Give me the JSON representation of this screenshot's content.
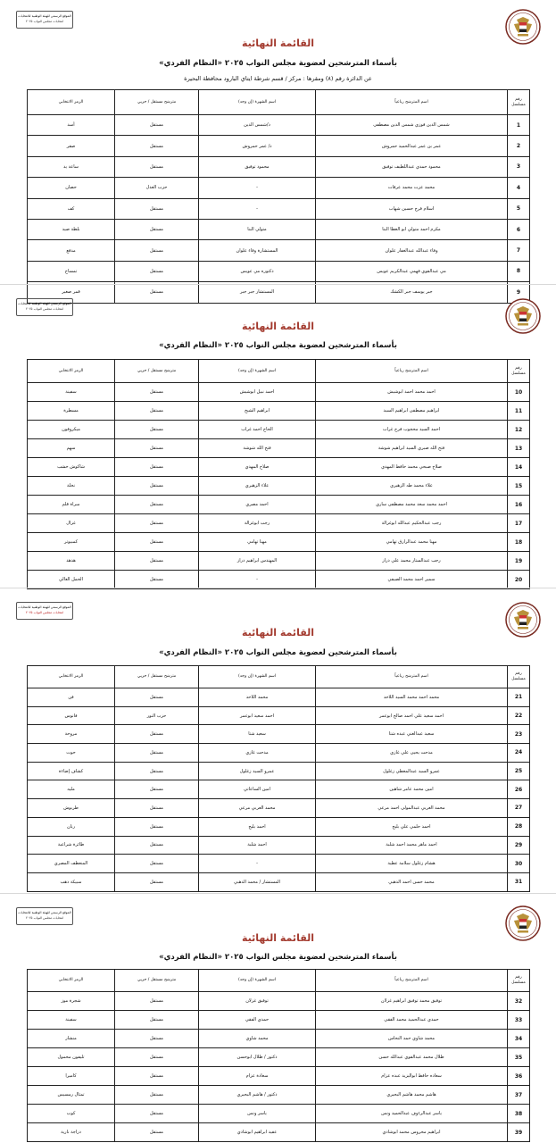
{
  "document": {
    "corner_box": {
      "line1": "الموقع الرسمي للهيئة الوطنية للانتخابات",
      "line2": "انتخابات مجلس النواب ٢٠٢٥"
    },
    "title": "القائمة النهائية",
    "subtitle": "بأسماء المترشحين لعضوية مجلس النواب ٢٠٢٥ «النظام الفردي»",
    "district": "عن الدائرة رقم (٨)   ومقرها : مركز / قسم شرطة ايتاي البارود   محافظة البحيرة",
    "columns": {
      "num": "رقم مسلسل",
      "name": "اسم المترشح رباعياً",
      "nickname": "اسم الشهرة (إن وجد)",
      "status": "مترشح مستقل / حزبي",
      "symbol": "الرمز الانتخابي"
    },
    "emblem_icon": "egypt-eagle-emblem",
    "title_color": "#a33a2e"
  },
  "pages": [
    {
      "rows": [
        {
          "num": "1",
          "name": "شمس الدين فوزي شمس الدين مصطفى",
          "nickname": "د/شمس الدين",
          "status": "مستقل",
          "symbol": "أسد"
        },
        {
          "num": "2",
          "name": "عمر بن عمر عبدالحميد حمروش",
          "nickname": "د/ عمر حمروش",
          "status": "مستقل",
          "symbol": "صقر"
        },
        {
          "num": "3",
          "name": "محمود حمدي عبداللطيف توفيق",
          "nickname": "محمود توفيق",
          "status": "مستقل",
          "symbol": "ساعة يد"
        },
        {
          "num": "4",
          "name": "محمد عزت محمد عرفات",
          "nickname": "-",
          "status": "حزب العدل",
          "symbol": "حصان"
        },
        {
          "num": "5",
          "name": "اسلام فرج حسين شهاب",
          "nickname": "-",
          "status": "مستقل",
          "symbol": "كف"
        },
        {
          "num": "6",
          "name": "مكرم احمد متولي ابو العطا البنا",
          "nickname": "متولي البنا",
          "status": "مستقل",
          "symbol": "بلطة صيد"
        },
        {
          "num": "7",
          "name": "وفاء عبدالله عبدالغفار علوان",
          "nickname": "المستشارة وفاء علوان",
          "status": "مستقل",
          "symbol": "مدفع"
        },
        {
          "num": "8",
          "name": "مي عبدالقوي فهمي عبدالكريم عويس",
          "nickname": "دكتوره مي عويس",
          "status": "مستقل",
          "symbol": "تمساح"
        },
        {
          "num": "9",
          "name": "جبر يوسف جبر الكشك",
          "nickname": "المستشار جبر جبر",
          "status": "مستقل",
          "symbol": "قمر صغير"
        }
      ]
    },
    {
      "rows": [
        {
          "num": "10",
          "name": "احمد محمد احمد ابوشيش",
          "nickname": "احمد نبيل ابوشيش",
          "status": "مستقل",
          "symbol": "سفينة"
        },
        {
          "num": "11",
          "name": "ابراهيم مصطفى ابراهيم السيد",
          "nickname": "ابراهيم الشيخ",
          "status": "مستقل",
          "symbol": "مسطرة"
        },
        {
          "num": "12",
          "name": "احمد السيد محجوب فرج غراب",
          "nickname": "الحاج احمد غراب",
          "status": "مستقل",
          "symbol": "ميكروفون"
        },
        {
          "num": "13",
          "name": "فتح الله صبري السيد ابراهيم شوشة",
          "nickname": "فتح الله شوشة",
          "status": "مستقل",
          "symbol": "سهم"
        },
        {
          "num": "14",
          "name": "صلاح صبحي محمد حافظ المهدي",
          "nickname": "صلاح المهدي",
          "status": "مستقل",
          "symbol": "شاكوش خشب"
        },
        {
          "num": "15",
          "name": "علاء محمد طه الزهيري",
          "nickname": "علاء الزهيري",
          "status": "مستقل",
          "symbol": "نخلة"
        },
        {
          "num": "16",
          "name": "احمد محمد سعد محمد مصطفى ساري",
          "nickname": "احمد مصري",
          "status": "مستقل",
          "symbol": "مبراة قلم"
        },
        {
          "num": "17",
          "name": "رجب عبدالحكيم عبدالله ابوغزالة",
          "nickname": "رجب ابوغزالة",
          "status": "مستقل",
          "symbol": "غزال"
        },
        {
          "num": "18",
          "name": "مهنا محمد عبدالرازق تهامي",
          "nickname": "مهنا تهامي",
          "status": "مستقل",
          "symbol": "كمبيوتر"
        },
        {
          "num": "19",
          "name": "رجب عبدالستار محمد علي دراز",
          "nickname": "المهندس ابراهيم دراز",
          "status": "مستقل",
          "symbol": "هدهد"
        },
        {
          "num": "20",
          "name": "سمير احمد محمد الصيفي",
          "nickname": "-",
          "status": "مستقل",
          "symbol": "الحمل العالي"
        }
      ]
    },
    {
      "rows": [
        {
          "num": "21",
          "name": "محمد احمد محمد السيد اللاحد",
          "nickname": "محمد اللاحد",
          "status": "مستقل",
          "symbol": "فن"
        },
        {
          "num": "22",
          "name": "احمد سعيد علي احمد صالح ابوعمر",
          "nickname": "احمد سعيد ابوعمر",
          "status": "حزب النور",
          "symbol": "فانوس"
        },
        {
          "num": "23",
          "name": "سعيد عبدالغني عبده شتا",
          "nickname": "سعيد شتا",
          "status": "مستقل",
          "symbol": "مروحة"
        },
        {
          "num": "24",
          "name": "مدحت يحيى علي غازي",
          "nickname": "مدحت غازي",
          "status": "مستقل",
          "symbol": "حوت"
        },
        {
          "num": "25",
          "name": "عمرو السيد عبدالمعطي زغلول",
          "nickname": "عمرو السيد زغلول",
          "status": "مستقل",
          "symbol": "كشاف إضاءة"
        },
        {
          "num": "26",
          "name": "امين محمد عامر شاهين",
          "nickname": "امين الساعاتي",
          "status": "مستقل",
          "symbol": "مليه"
        },
        {
          "num": "27",
          "name": "محمد العربي عبدالمولى احمد مرعي",
          "nickname": "محمد العربي مرعي",
          "status": "مستقل",
          "symbol": "طربوش"
        },
        {
          "num": "28",
          "name": "احمد حلمي علي بليح",
          "nickname": "احمد بليح",
          "status": "مستقل",
          "symbol": "رنان"
        },
        {
          "num": "29",
          "name": "احمد ماهر محمد احمد شلبة",
          "nickname": "احمد شلبة",
          "status": "مستقل",
          "symbol": "طائرة شراعية"
        },
        {
          "num": "30",
          "name": "هشام زغلول سلامة عطية",
          "nickname": "-",
          "status": "مستقل",
          "symbol": "المنعطف المصري"
        },
        {
          "num": "31",
          "name": "محمد حسن احمد الذهبي",
          "nickname": "المستشار / محمد الذهبي",
          "status": "مستقل",
          "symbol": "سبيكة ذهب"
        }
      ]
    },
    {
      "rows": [
        {
          "num": "32",
          "name": "توفيق محمد توفيق ابراهيم غزلان",
          "nickname": "توفيق غزلان",
          "status": "مستقل",
          "symbol": "شجرة موز"
        },
        {
          "num": "33",
          "name": "حمدي عبدالحميد محمد الفقي",
          "nickname": "حمدي الفقي",
          "status": "مستقل",
          "symbol": "سفينة"
        },
        {
          "num": "34",
          "name": "محمد شاوي حمد النحاس",
          "nickname": "محمد شاوي",
          "status": "مستقل",
          "symbol": "منشار"
        },
        {
          "num": "35",
          "name": "طلال محمد عبدالقوي عبدالله حسن",
          "nickname": "دكتور / طلال ابوحسن",
          "status": "مستقل",
          "symbol": "تليفون محمول"
        },
        {
          "num": "36",
          "name": "سعاده حافظ ابواليزيد عبده عزام",
          "nickname": "سعادة عزام",
          "status": "مستقل",
          "symbol": "كاميرا"
        },
        {
          "num": "37",
          "name": "هاشم محمد هاشم البحيري",
          "nickname": "دكتور / هاشم البحيري",
          "status": "مستقل",
          "symbol": "تمثال رمسيس"
        },
        {
          "num": "38",
          "name": "ياسر عبدالرءوف عبدالحميد ونس",
          "nickname": "ياسر ونس",
          "status": "مستقل",
          "symbol": "كوب"
        },
        {
          "num": "39",
          "name": "ابراهيم محروس محمد ابوشادي",
          "nickname": "عقيد ابراهيم ابوشادي",
          "status": "مستقل",
          "symbol": "دراجة نارية"
        }
      ]
    }
  ]
}
